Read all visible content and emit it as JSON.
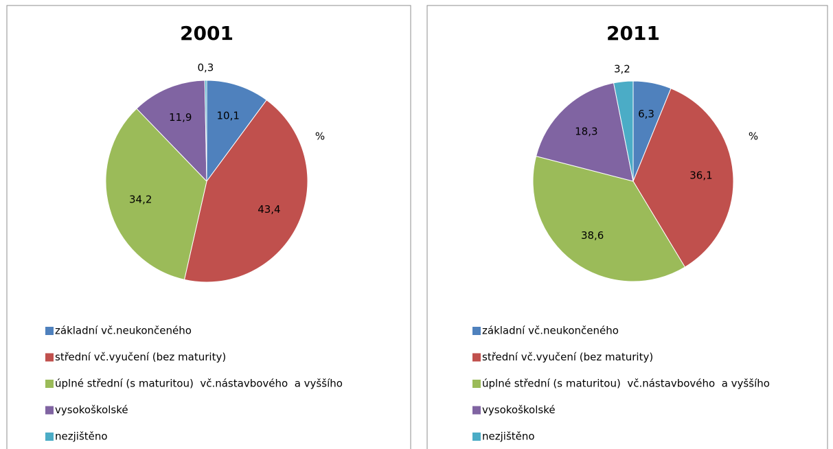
{
  "chart_data": [
    {
      "type": "pie",
      "title": "2001",
      "annotation": "%",
      "categories": [
        "základní vč.neukončeného",
        "střední vč.vyučení (bez maturity)",
        "úplné střední (s maturitou)  vč.nástavbového  a vyššího",
        "vysokoškolské",
        "nezjištěno"
      ],
      "values": [
        10.1,
        43.4,
        34.2,
        11.9,
        0.3
      ],
      "value_labels": [
        "10,1",
        "43,4",
        "34,2",
        "11,9",
        "0,3"
      ],
      "colors": [
        "#4f81bd",
        "#c0504d",
        "#9bbb59",
        "#8064a2",
        "#4bacc6"
      ]
    },
    {
      "type": "pie",
      "title": "2011",
      "annotation": "%",
      "categories": [
        "základní vč.neukončeného",
        "střední vč.vyučení (bez maturity)",
        "úplné střední (s maturitou)  vč.nástavbového  a vyššího",
        "vysokoškolské",
        "nezjištěno"
      ],
      "values": [
        6.3,
        36.1,
        38.6,
        18.3,
        3.2
      ],
      "value_labels": [
        "6,3",
        "36,1",
        "38,6",
        "18,3",
        "3,2"
      ],
      "colors": [
        "#4f81bd",
        "#c0504d",
        "#9bbb59",
        "#8064a2",
        "#4bacc6"
      ]
    }
  ]
}
